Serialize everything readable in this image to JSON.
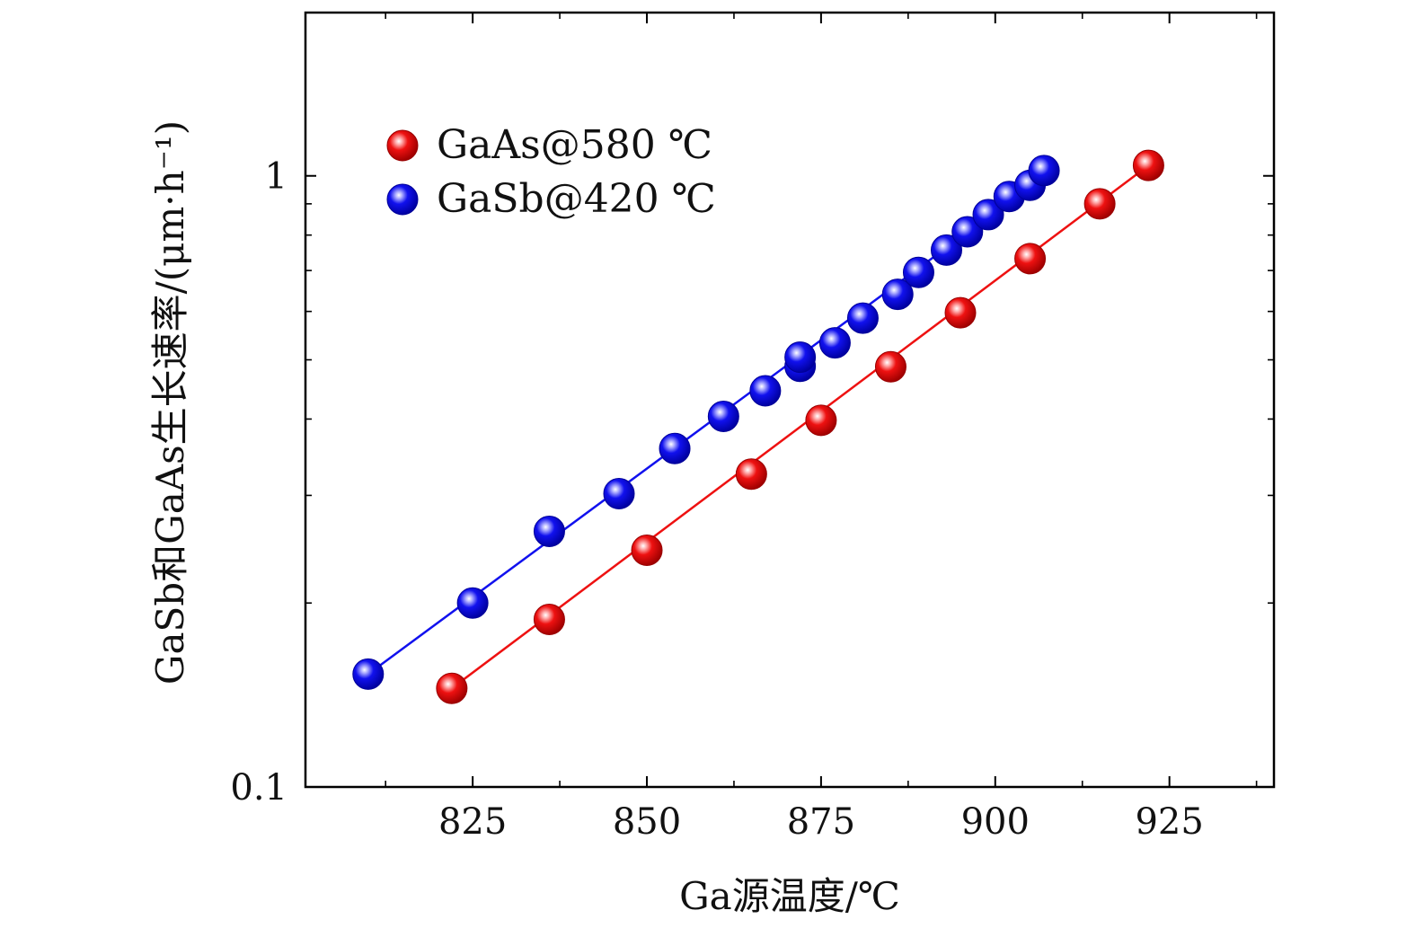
{
  "chart_data": {
    "type": "scatter",
    "xlabel": "Ga源温度/℃",
    "ylabel": "GaSb和GaAs生长速率/(μm·h⁻¹)",
    "x_ticks": [
      825,
      850,
      875,
      900,
      925
    ],
    "y_ticks": [
      {
        "value": 0.1,
        "label": "0.1"
      },
      {
        "value": 1,
        "label": "1"
      }
    ],
    "xlim": [
      801,
      940
    ],
    "ylim": [
      0.1,
      1.85
    ],
    "y_scale": "log",
    "grid": false,
    "legend_position": "top-left",
    "series": [
      {
        "name": "GaAs@580 ℃",
        "color": "#ee1111",
        "fit_line": {
          "x": [
            822,
            922
          ],
          "y": [
            0.145,
            1.04
          ]
        },
        "points": [
          {
            "x": 822,
            "y": 0.145
          },
          {
            "x": 836,
            "y": 0.188
          },
          {
            "x": 850,
            "y": 0.244
          },
          {
            "x": 865,
            "y": 0.325
          },
          {
            "x": 875,
            "y": 0.398
          },
          {
            "x": 885,
            "y": 0.487
          },
          {
            "x": 895,
            "y": 0.597
          },
          {
            "x": 905,
            "y": 0.732
          },
          {
            "x": 915,
            "y": 0.9
          },
          {
            "x": 922,
            "y": 1.04
          }
        ]
      },
      {
        "name": "GaSb@420 ℃",
        "color": "#1111ee",
        "fit_line": {
          "x": [
            810,
            908
          ],
          "y": [
            0.153,
            1.02
          ]
        },
        "points": [
          {
            "x": 810,
            "y": 0.153
          },
          {
            "x": 825,
            "y": 0.2
          },
          {
            "x": 836,
            "y": 0.262
          },
          {
            "x": 846,
            "y": 0.302
          },
          {
            "x": 854,
            "y": 0.358
          },
          {
            "x": 861,
            "y": 0.404
          },
          {
            "x": 867,
            "y": 0.445
          },
          {
            "x": 872,
            "y": 0.488
          },
          {
            "x": 872,
            "y": 0.505
          },
          {
            "x": 877,
            "y": 0.533
          },
          {
            "x": 881,
            "y": 0.585
          },
          {
            "x": 886,
            "y": 0.64
          },
          {
            "x": 889,
            "y": 0.695
          },
          {
            "x": 893,
            "y": 0.756
          },
          {
            "x": 896,
            "y": 0.81
          },
          {
            "x": 899,
            "y": 0.864
          },
          {
            "x": 902,
            "y": 0.925
          },
          {
            "x": 905,
            "y": 0.965
          },
          {
            "x": 907,
            "y": 1.02
          }
        ]
      }
    ]
  }
}
